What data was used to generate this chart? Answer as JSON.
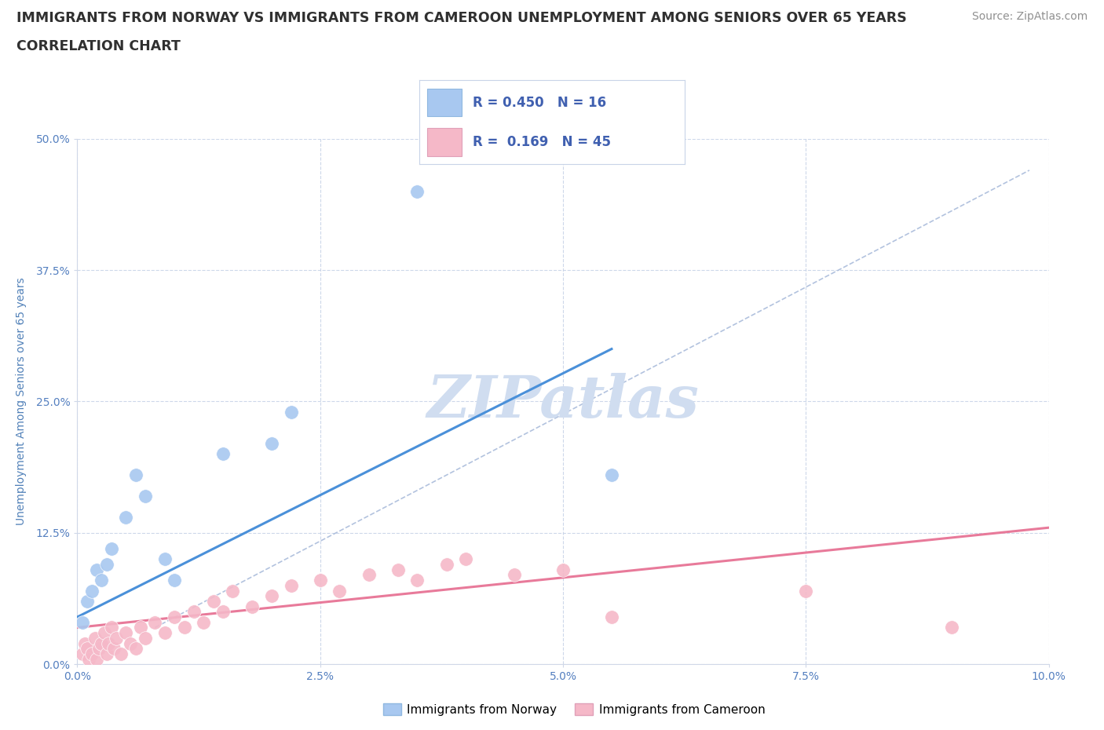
{
  "title_line1": "IMMIGRANTS FROM NORWAY VS IMMIGRANTS FROM CAMEROON UNEMPLOYMENT AMONG SENIORS OVER 65 YEARS",
  "title_line2": "CORRELATION CHART",
  "source": "Source: ZipAtlas.com",
  "ylabel": "Unemployment Among Seniors over 65 years",
  "xlim": [
    0.0,
    10.0
  ],
  "ylim": [
    0.0,
    50.0
  ],
  "xticks": [
    0.0,
    2.5,
    5.0,
    7.5,
    10.0
  ],
  "yticks": [
    0.0,
    12.5,
    25.0,
    37.5,
    50.0
  ],
  "xtick_labels": [
    "0.0%",
    "2.5%",
    "5.0%",
    "7.5%",
    "10.0%"
  ],
  "ytick_labels": [
    "0.0%",
    "12.5%",
    "25.0%",
    "37.5%",
    "50.0%"
  ],
  "norway_color": "#a8c8f0",
  "cameroon_color": "#f5b8c8",
  "norway_line_color": "#4a90d9",
  "cameroon_line_color": "#e87a9a",
  "diagonal_color": "#aabcdb",
  "r_norway": 0.45,
  "n_norway": 16,
  "r_cameroon": 0.169,
  "n_cameroon": 45,
  "norway_points_x": [
    0.05,
    0.1,
    0.15,
    0.2,
    0.25,
    0.3,
    0.35,
    0.5,
    0.6,
    0.7,
    0.9,
    1.0,
    1.5,
    2.0,
    2.2,
    5.5
  ],
  "norway_points_y": [
    4.0,
    6.0,
    7.0,
    9.0,
    8.0,
    9.5,
    11.0,
    14.0,
    18.0,
    16.0,
    10.0,
    8.0,
    20.0,
    21.0,
    24.0,
    18.0
  ],
  "norway_outlier_x": [
    3.5
  ],
  "norway_outlier_y": [
    45.0
  ],
  "cameroon_points_x": [
    0.05,
    0.08,
    0.1,
    0.12,
    0.15,
    0.18,
    0.2,
    0.22,
    0.25,
    0.28,
    0.3,
    0.32,
    0.35,
    0.38,
    0.4,
    0.45,
    0.5,
    0.55,
    0.6,
    0.65,
    0.7,
    0.8,
    0.9,
    1.0,
    1.1,
    1.2,
    1.3,
    1.4,
    1.5,
    1.6,
    1.8,
    2.0,
    2.2,
    2.5,
    2.7,
    3.0,
    3.3,
    3.5,
    3.8,
    4.0,
    4.5,
    5.0,
    5.5,
    7.5,
    9.0
  ],
  "cameroon_points_y": [
    1.0,
    2.0,
    1.5,
    0.5,
    1.0,
    2.5,
    0.5,
    1.5,
    2.0,
    3.0,
    1.0,
    2.0,
    3.5,
    1.5,
    2.5,
    1.0,
    3.0,
    2.0,
    1.5,
    3.5,
    2.5,
    4.0,
    3.0,
    4.5,
    3.5,
    5.0,
    4.0,
    6.0,
    5.0,
    7.0,
    5.5,
    6.5,
    7.5,
    8.0,
    7.0,
    8.5,
    9.0,
    8.0,
    9.5,
    10.0,
    8.5,
    9.0,
    4.5,
    7.0,
    3.5
  ],
  "background_color": "#ffffff",
  "grid_color": "#c8d4e8",
  "watermark_text": "ZIPatlas",
  "watermark_color": "#d0ddf0",
  "legend_label_norway": "Immigrants from Norway",
  "legend_label_cameroon": "Immigrants from Cameroon",
  "title_fontsize": 12.5,
  "axis_label_fontsize": 10,
  "tick_fontsize": 10,
  "legend_fontsize": 11,
  "source_fontsize": 10,
  "norway_line_x": [
    0.0,
    5.5
  ],
  "norway_line_y": [
    4.5,
    30.0
  ],
  "cameroon_line_x": [
    0.0,
    10.0
  ],
  "cameroon_line_y": [
    3.5,
    13.0
  ],
  "diag_line_x": [
    0.8,
    9.8
  ],
  "diag_line_y": [
    3.5,
    47.0
  ]
}
